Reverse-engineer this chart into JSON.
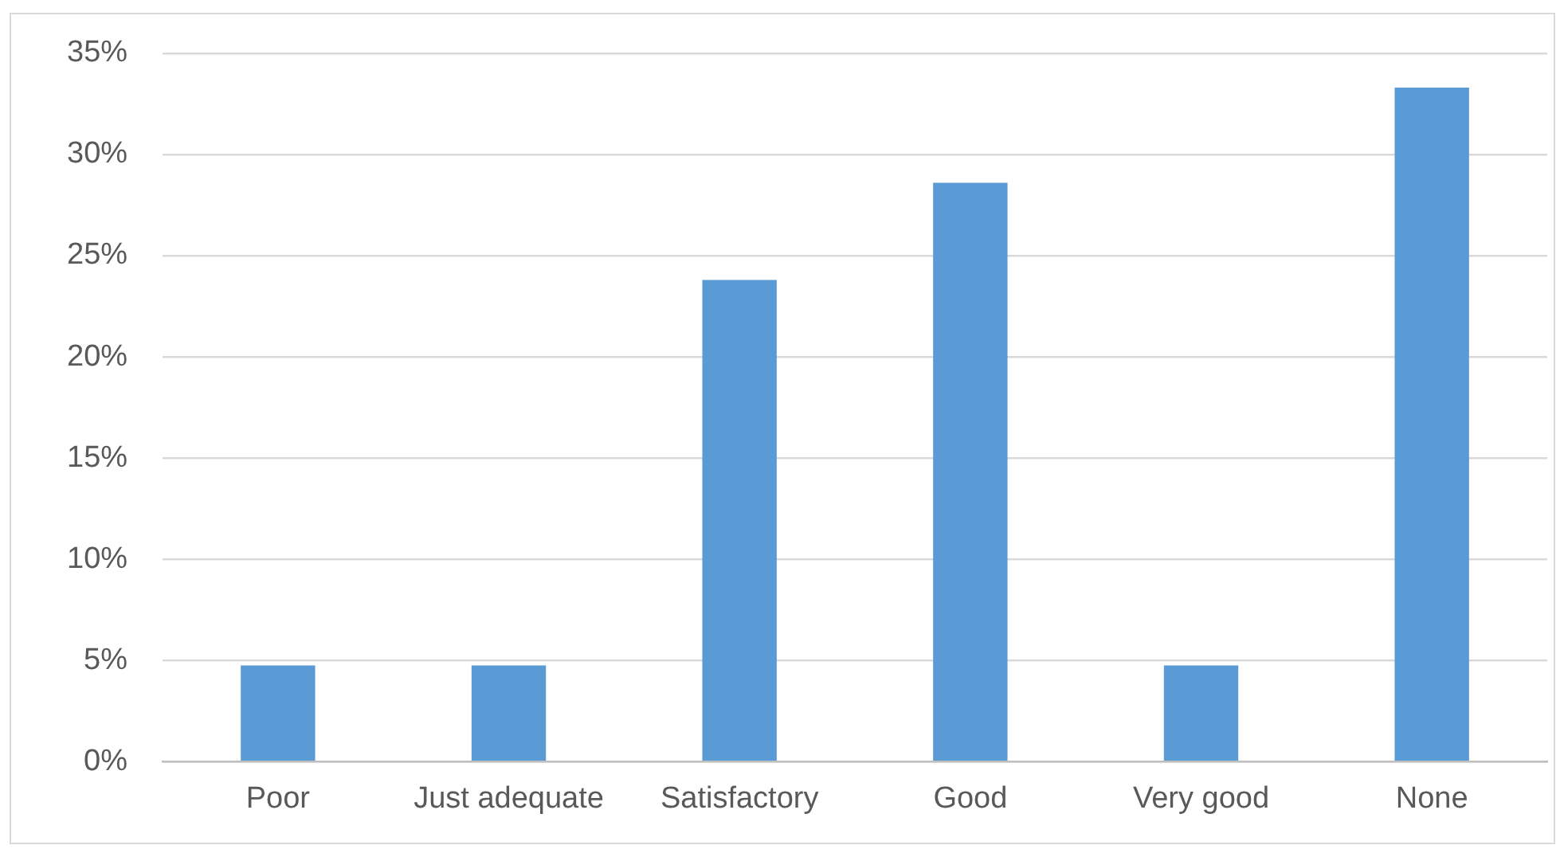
{
  "chart_data": {
    "type": "bar",
    "categories": [
      "Poor",
      "Just adequate",
      "Satisfactory",
      "Good",
      "Very good",
      "None"
    ],
    "values": [
      4.76,
      4.76,
      23.8,
      28.6,
      4.76,
      33.3
    ],
    "color": "#5b9bd5",
    "ylim": [
      0,
      35
    ],
    "yticks": [
      {
        "value": 0,
        "label": "0%"
      },
      {
        "value": 5,
        "label": "5%"
      },
      {
        "value": 10,
        "label": "10%"
      },
      {
        "value": 15,
        "label": "15%"
      },
      {
        "value": 20,
        "label": "20%"
      },
      {
        "value": 25,
        "label": "25%"
      },
      {
        "value": 30,
        "label": "30%"
      },
      {
        "value": 35,
        "label": "35%"
      }
    ],
    "grid": "y"
  }
}
